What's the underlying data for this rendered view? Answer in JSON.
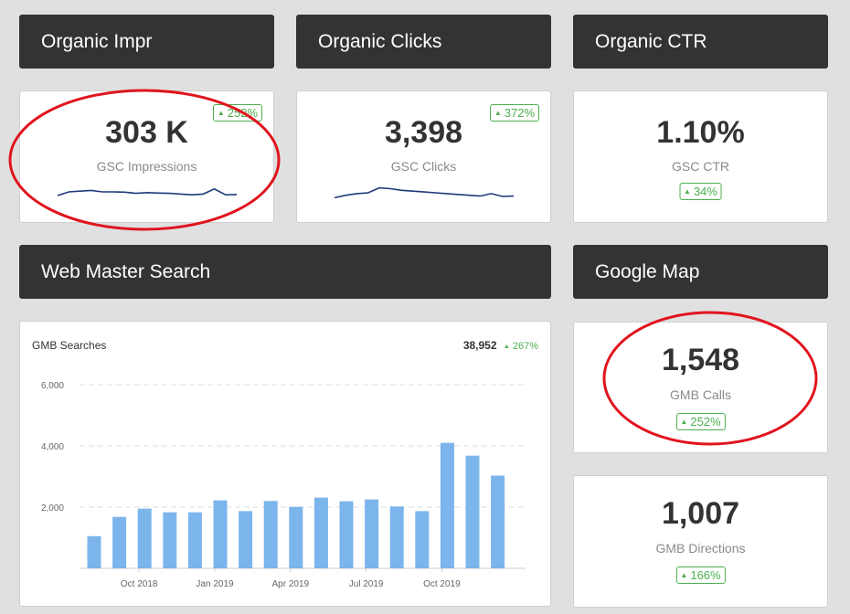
{
  "headers": {
    "organic_impr": "Organic Impr",
    "organic_clicks": "Organic Clicks",
    "organic_ctr": "Organic CTR",
    "web_master_search": "Web Master Search",
    "google_map": "Google Map"
  },
  "cards": {
    "impressions": {
      "value": "303 K",
      "label": "GSC Impressions",
      "change": "252%",
      "sparkline": [
        0.25,
        0.5,
        0.55,
        0.6,
        0.5,
        0.5,
        0.48,
        0.4,
        0.45,
        0.42,
        0.4,
        0.35,
        0.3,
        0.35,
        0.7,
        0.3,
        0.32
      ]
    },
    "clicks": {
      "value": "3,398",
      "label": "GSC Clicks",
      "change": "372%",
      "sparkline": [
        0.2,
        0.35,
        0.45,
        0.5,
        0.8,
        0.75,
        0.65,
        0.6,
        0.55,
        0.5,
        0.45,
        0.4,
        0.35,
        0.3,
        0.45,
        0.28,
        0.3
      ]
    },
    "ctr": {
      "value": "1.10%",
      "label": "GSC CTR",
      "change": "34%"
    },
    "gmb_calls": {
      "value": "1,548",
      "label": "GMB Calls",
      "change": "252%"
    },
    "gmb_directions": {
      "value": "1,007",
      "label": "GMB Directions",
      "change": "166%"
    }
  },
  "gmb_chart": {
    "title": "GMB Searches",
    "total": "38,952",
    "change": "267%"
  },
  "colors": {
    "header_bg": "#333333",
    "badge_green": "#4caf50",
    "bar_blue": "#7cb5ec",
    "sparkline": "#1f3a7a",
    "annotation_red": "#e0141e"
  },
  "chart_data": {
    "type": "bar",
    "title": "GMB Searches",
    "x_tick_labels": [
      "Oct 2018",
      "Jan 2019",
      "Apr 2019",
      "Jul 2019",
      "Oct 2019"
    ],
    "y_tick_labels": [
      "2,000",
      "4,000",
      "6,000"
    ],
    "ylim": [
      0,
      6000
    ],
    "grid": true,
    "values": [
      1050,
      1680,
      1950,
      1830,
      1830,
      2220,
      1870,
      2200,
      2010,
      2310,
      2190,
      2250,
      2020,
      1870,
      4100,
      3680,
      3030
    ]
  }
}
